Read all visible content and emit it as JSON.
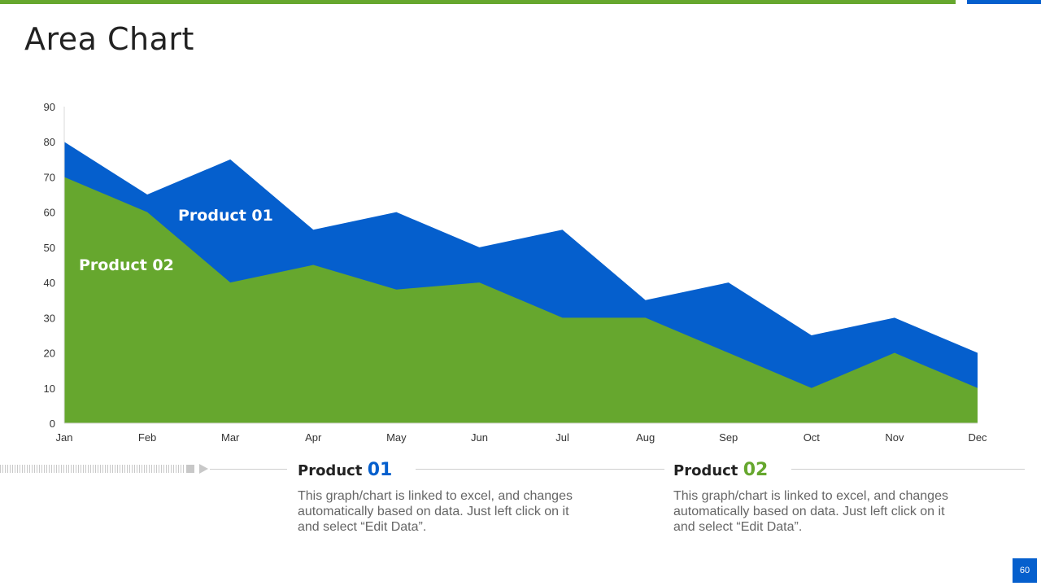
{
  "page": {
    "title": "Area Chart",
    "page_number": "60"
  },
  "colors": {
    "product01": "#055fcd",
    "product02": "#66a72e",
    "axis": "#d9d9d9"
  },
  "chart_data": {
    "type": "area",
    "stacked": false,
    "categories": [
      "Jan",
      "Feb",
      "Mar",
      "Apr",
      "May",
      "Jun",
      "Jul",
      "Aug",
      "Sep",
      "Oct",
      "Nov",
      "Dec"
    ],
    "series": [
      {
        "name": "Product 01",
        "values": [
          80,
          65,
          75,
          55,
          60,
          50,
          55,
          35,
          40,
          25,
          30,
          20
        ]
      },
      {
        "name": "Product 02",
        "values": [
          70,
          60,
          40,
          45,
          38,
          40,
          30,
          30,
          20,
          10,
          20,
          10
        ]
      }
    ],
    "yticks": [
      0,
      10,
      20,
      30,
      40,
      50,
      60,
      70,
      80,
      90
    ],
    "ylim": [
      0,
      90
    ],
    "labels": {
      "product01": "Product 01",
      "product02": "Product 02"
    },
    "xlabel": "",
    "ylabel": "",
    "grid": false
  },
  "products": [
    {
      "label": "Product",
      "number": "01",
      "description": "This graph/chart is linked to excel, and changes automatically based on data. Just left click on it and select “Edit Data”."
    },
    {
      "label": "Product",
      "number": "02",
      "description": "This graph/chart is linked to excel, and changes automatically based on data. Just left click on it and select “Edit Data”."
    }
  ]
}
